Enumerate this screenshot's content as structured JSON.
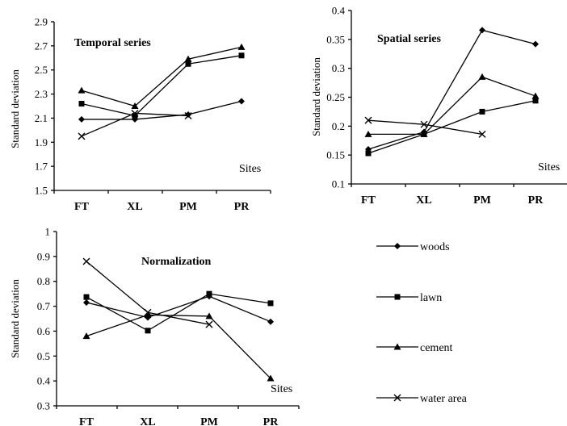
{
  "legend": {
    "items": [
      {
        "label": "woods",
        "marker": "diamond"
      },
      {
        "label": "lawn",
        "marker": "square"
      },
      {
        "label": "cement",
        "marker": "triangle"
      },
      {
        "label": "water area",
        "marker": "x"
      }
    ]
  },
  "chart_data": [
    {
      "id": "temporal",
      "type": "line",
      "title": "Temporal series",
      "annotation": "Sites",
      "ylabel": "Standard deviation",
      "xlabel": "",
      "categories": [
        "FT",
        "XL",
        "PM",
        "PR"
      ],
      "ylim": [
        1.5,
        2.9
      ],
      "yticks": [
        "1.5",
        "1.7",
        "1.9",
        "2.1",
        "2.3",
        "2.5",
        "2.7",
        "2.9"
      ],
      "grid": false,
      "series": [
        {
          "name": "woods",
          "marker": "diamond",
          "values": [
            2.09,
            2.09,
            2.13,
            2.24
          ]
        },
        {
          "name": "lawn",
          "marker": "square",
          "values": [
            2.22,
            2.12,
            2.55,
            2.62
          ]
        },
        {
          "name": "cement",
          "marker": "triangle",
          "values": [
            2.33,
            2.2,
            2.59,
            2.69
          ]
        },
        {
          "name": "water area",
          "marker": "x",
          "values": [
            1.95,
            2.14,
            2.12,
            null
          ]
        }
      ]
    },
    {
      "id": "spatial",
      "type": "line",
      "title": "Spatial series",
      "annotation": "Sites",
      "ylabel": "Standard deviation",
      "xlabel": "",
      "categories": [
        "FT",
        "XL",
        "PM",
        "PR"
      ],
      "ylim": [
        0.1,
        0.4
      ],
      "yticks": [
        "0.1",
        "0.15",
        "0.2",
        "0.25",
        "0.3",
        "0.35",
        "0.4"
      ],
      "grid": false,
      "series": [
        {
          "name": "woods",
          "marker": "diamond",
          "values": [
            0.16,
            0.19,
            0.366,
            0.342
          ]
        },
        {
          "name": "lawn",
          "marker": "square",
          "values": [
            0.153,
            0.186,
            0.225,
            0.244
          ]
        },
        {
          "name": "cement",
          "marker": "triangle",
          "values": [
            0.186,
            0.186,
            0.285,
            0.252
          ]
        },
        {
          "name": "water area",
          "marker": "x",
          "values": [
            0.21,
            0.203,
            0.186,
            null
          ]
        }
      ]
    },
    {
      "id": "normalization",
      "type": "line",
      "title": "Normalization",
      "annotation": "Sites",
      "ylabel": "Standard deviation",
      "xlabel": "",
      "categories": [
        "FT",
        "XL",
        "PM",
        "PR"
      ],
      "ylim": [
        0.3,
        1.0
      ],
      "yticks": [
        "0.3",
        "0.4",
        "0.5",
        "0.6",
        "0.7",
        "0.8",
        "0.9",
        "1"
      ],
      "grid": false,
      "series": [
        {
          "name": "woods",
          "marker": "diamond",
          "values": [
            0.715,
            0.655,
            0.74,
            0.638
          ]
        },
        {
          "name": "lawn",
          "marker": "square",
          "values": [
            0.737,
            0.602,
            0.75,
            0.712
          ]
        },
        {
          "name": "cement",
          "marker": "triangle",
          "values": [
            0.58,
            0.665,
            0.66,
            0.41
          ]
        },
        {
          "name": "water area",
          "marker": "x",
          "values": [
            0.88,
            0.675,
            0.627,
            null
          ]
        }
      ]
    }
  ]
}
